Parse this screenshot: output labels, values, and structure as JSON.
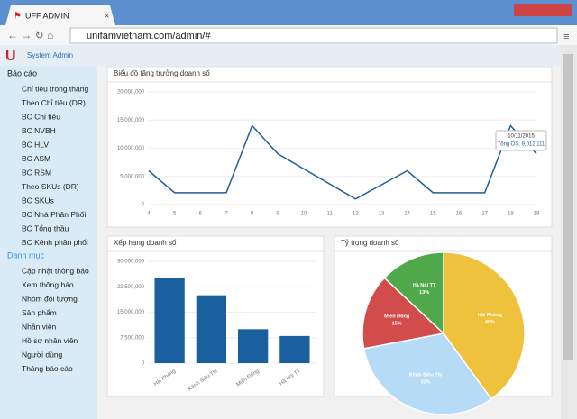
{
  "browser": {
    "tab_title": "UFF ADMIN",
    "url": "unifamvietnam.com/admin/#"
  },
  "header": {
    "user": "System Admin"
  },
  "sidebar": {
    "sections": [
      {
        "title": "Báo cáo",
        "items": [
          "Chỉ tiêu trong tháng",
          "Theo Chỉ tiêu (DR)",
          "BC Chỉ tiêu",
          "BC NVBH",
          "BC HLV",
          "BC ASM",
          "BC RSM",
          "Theo SKUs (DR)",
          "BC SKUs",
          "BC Nhà Phân Phối",
          "BC Tổng thầu",
          "BC Kênh phân phối"
        ]
      },
      {
        "title": "Danh mục",
        "items": [
          "Cập nhật thông báo",
          "Xem thông báo",
          "Nhóm đối tượng",
          "Sản phẩm",
          "Nhân viên",
          "Hồ sơ nhân viên",
          "Người dùng",
          "Tháng báo cáo"
        ]
      }
    ]
  },
  "line_chart": {
    "type": "line",
    "title": "Biểu đồ tăng trưởng doanh số",
    "color": "#1f5f9a",
    "x": [
      4,
      5,
      7,
      8,
      9,
      12,
      14,
      15,
      17,
      18,
      19
    ],
    "values": [
      6000000,
      2100000,
      2100000,
      14000000,
      9000000,
      1000000,
      6000000,
      2100000,
      2100000,
      14000000,
      9012111
    ],
    "xlim": [
      4,
      19
    ],
    "xticks": [
      4,
      5,
      6,
      7,
      8,
      9,
      10,
      11,
      12,
      13,
      14,
      15,
      16,
      17,
      18,
      19
    ],
    "ylim": [
      0,
      20000000
    ],
    "yticks": [
      0,
      {
        "value": 5000000,
        "label": "5,000,000"
      },
      {
        "value": 10000000,
        "label": "10,000,000"
      },
      {
        "value": 15000000,
        "label": "15,000,000"
      },
      {
        "value": 20000000,
        "label": "20,000,000"
      }
    ],
    "grid": true,
    "tooltip": {
      "date": "10/11/2015",
      "text": "Tổng DS: 9,012,111"
    }
  },
  "bar_chart": {
    "type": "bar",
    "title": "Xếp hạng doanh số",
    "color": "#1a5f9e",
    "categories": [
      "Hải Phòng",
      "Kênh Siêu Thị",
      "Miền Đông",
      "Hà Nội TT"
    ],
    "values": [
      25000000,
      20000000,
      10000000,
      8000000
    ],
    "ylim": [
      0,
      30000000
    ],
    "yticks": [
      0,
      {
        "value": 7500000,
        "label": "7,500,000"
      },
      {
        "value": 15000000,
        "label": "15,000,000"
      },
      {
        "value": 22500000,
        "label": "22,500,000"
      },
      {
        "value": 30000000,
        "label": "30,000,000"
      }
    ],
    "grid": true
  },
  "pie_chart": {
    "type": "pie",
    "title": "Tỷ trọng doanh số",
    "categories": [
      "Hải Phòng",
      "Kênh Siêu Thị",
      "Miền Đông",
      "Hà Nội TT"
    ],
    "values": [
      40,
      32,
      15,
      13
    ],
    "value_labels": [
      "40%",
      "32%",
      "15%",
      "13%"
    ],
    "colors": [
      "#efc23e",
      "#b5dbf7",
      "#d24c4c",
      "#4fa84a"
    ]
  }
}
